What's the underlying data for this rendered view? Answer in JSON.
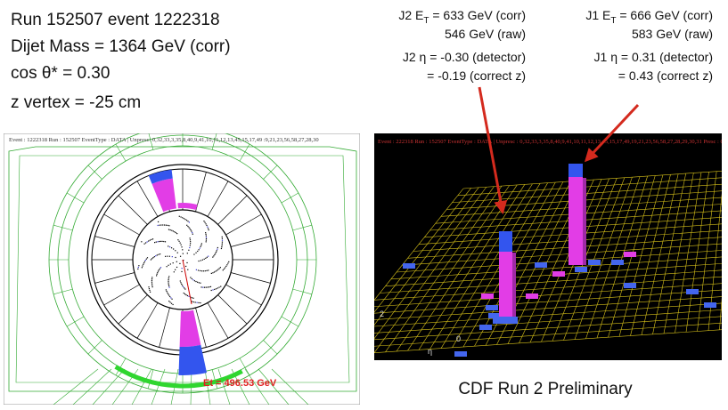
{
  "event_info": [
    "Run 152507 event 1222318",
    "Dijet Mass = 1364 GeV (corr)",
    "cos θ* = 0.30",
    "z vertex = -25 cm"
  ],
  "jets": [
    {
      "et_prefix": "J2 E",
      "et_sub": "T",
      "et_corr": " = 633 GeV (corr)",
      "et_raw": "546 GeV (raw)",
      "eta_detector": "J2 η = -0.30 (detector)",
      "eta_corrected": "= -0.19 (correct z)"
    },
    {
      "et_prefix": "J1 E",
      "et_sub": "T",
      "et_corr": " = 666 GeV (corr)",
      "et_raw": "583 GeV (raw)",
      "eta_detector": "J1 η = 0.31 (detector)",
      "eta_corrected": "= 0.43 (correct z)"
    }
  ],
  "event_display": {
    "header": "Event : 1222318 Run : 152507 EventType : DATA | Unpresc: 0,32,33,3,35,8,40,9,41,10,11,12,13,45,15,17,49 :9,21,23,56,58,27,28,30",
    "et_label": "Et = 496.53 GeV"
  },
  "lego_plot": {
    "header": "Event : 222318 Run : 152507 EventType : DATA | Unpresc : 0,32,33,3,35,8,40,9,41,10,11,12,13,45,15,17,49,19,21,23,56,58,27,28,29,30,31 Presc : 0,32,33,4,38,2",
    "axis_labels": [
      "2",
      "0",
      "η"
    ]
  },
  "footer": "CDF Run 2 Preliminary"
}
